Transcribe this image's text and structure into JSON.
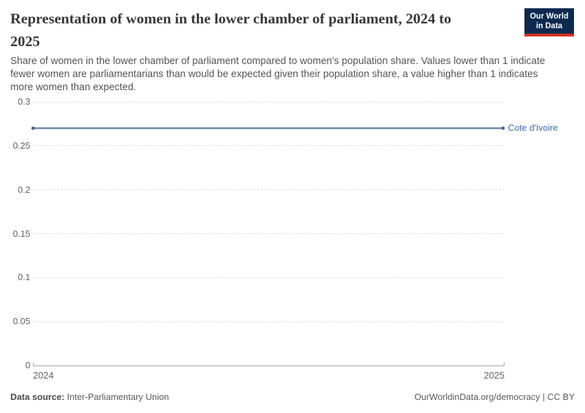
{
  "header": {
    "title": "Representation of women in the lower chamber of parliament, 2024 to 2025",
    "title_lines": [
      "Representation of women in the lower chamber of parliament, 2024 to",
      "2025"
    ],
    "subtitle": "Share of women in the lower chamber of parliament compared to women's population share. Values lower than 1 indicate fewer women are parliamentarians than would be expected given their population share, a value higher than 1 indicates more women than expected.",
    "subtitle_lines": [
      "Share of women in the lower chamber of parliament compared to women's population share. Values lower than 1 indicate",
      "fewer women are parliamentarians than would be expected given their population share, a value higher than 1 indicates",
      "more women than expected."
    ],
    "logo": {
      "line1": "Our World",
      "line2": "in Data",
      "bg_color": "#0c2a50",
      "bar_color": "#d7301f"
    }
  },
  "chart_data": {
    "type": "line",
    "title": "Representation of women in the lower chamber of parliament, 2024 to 2025",
    "x": [
      2024,
      2025
    ],
    "xtick_labels": [
      "2024",
      "2025"
    ],
    "series": [
      {
        "name": "Cote d'Ivoire",
        "values": [
          0.27,
          0.27
        ],
        "color": "#6D87AD",
        "dot_color": "#4E69A2",
        "label_color": "#3D6CAE"
      }
    ],
    "ylim": [
      0,
      0.3
    ],
    "yticks": [
      0,
      0.05,
      0.1,
      0.15,
      0.2,
      0.25,
      0.3
    ],
    "ytick_labels": [
      "0",
      "0.05",
      "0.1",
      "0.15",
      "0.2",
      "0.25",
      "0.3"
    ],
    "grid": "horizontal-dashed",
    "grid_color": "#dddddd",
    "axis_color": "#a1a1a1",
    "legend_position": "end-of-line"
  },
  "footer": {
    "data_source_label": "Data source:",
    "data_source_value": "Inter-Parliamentary Union",
    "attribution": "OurWorldinData.org/democracy | CC BY"
  }
}
